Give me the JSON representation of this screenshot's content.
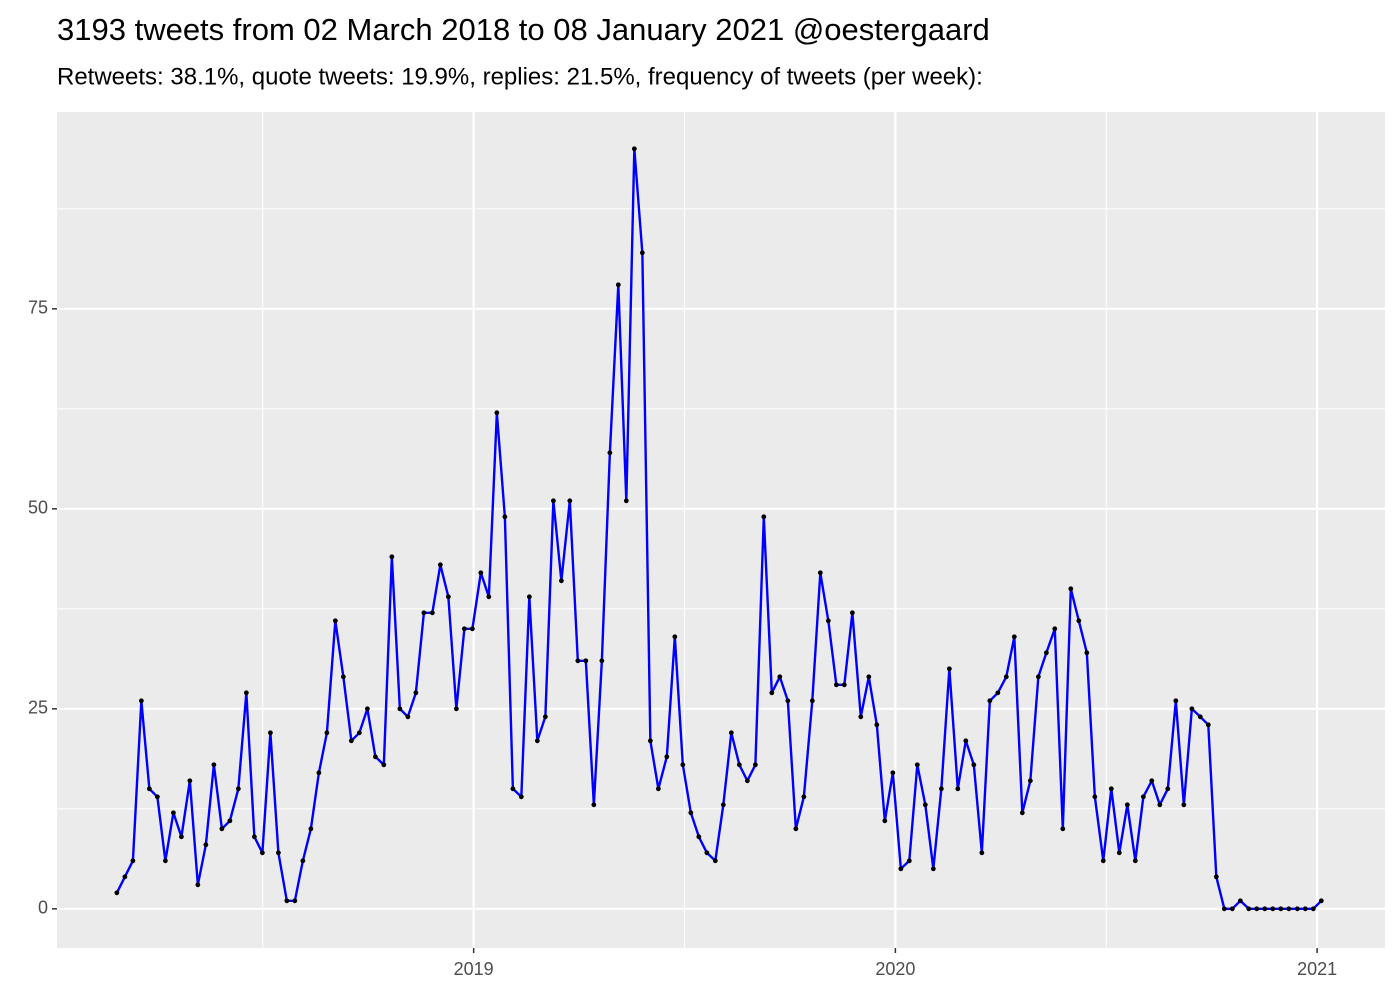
{
  "chart_data": {
    "type": "line",
    "title": "3193 tweets from 02 March 2018 to 08 January 2021 @oestergaard",
    "subtitle": "Retweets: 38.1%, quote tweets: 19.9%, replies: 21.5%, frequency of tweets (per week):",
    "x": [
      2018.154,
      2018.173,
      2018.192,
      2018.212,
      2018.231,
      2018.25,
      2018.269,
      2018.288,
      2018.307,
      2018.327,
      2018.346,
      2018.365,
      2018.384,
      2018.403,
      2018.422,
      2018.442,
      2018.461,
      2018.48,
      2018.499,
      2018.518,
      2018.537,
      2018.557,
      2018.576,
      2018.595,
      2018.614,
      2018.633,
      2018.652,
      2018.672,
      2018.691,
      2018.71,
      2018.729,
      2018.748,
      2018.767,
      2018.787,
      2018.806,
      2018.825,
      2018.844,
      2018.863,
      2018.882,
      2018.902,
      2018.921,
      2018.94,
      2018.959,
      2018.978,
      2018.997,
      2019.017,
      2019.036,
      2019.055,
      2019.074,
      2019.093,
      2019.113,
      2019.132,
      2019.151,
      2019.17,
      2019.189,
      2019.208,
      2019.228,
      2019.247,
      2019.266,
      2019.285,
      2019.304,
      2019.323,
      2019.343,
      2019.362,
      2019.381,
      2019.4,
      2019.419,
      2019.438,
      2019.458,
      2019.477,
      2019.496,
      2019.515,
      2019.534,
      2019.553,
      2019.573,
      2019.592,
      2019.611,
      2019.63,
      2019.649,
      2019.668,
      2019.688,
      2019.707,
      2019.726,
      2019.745,
      2019.764,
      2019.783,
      2019.803,
      2019.822,
      2019.841,
      2019.86,
      2019.879,
      2019.898,
      2019.918,
      2019.937,
      2019.956,
      2019.975,
      2019.994,
      2020.013,
      2020.033,
      2020.052,
      2020.071,
      2020.09,
      2020.109,
      2020.128,
      2020.148,
      2020.167,
      2020.186,
      2020.205,
      2020.224,
      2020.243,
      2020.263,
      2020.282,
      2020.301,
      2020.32,
      2020.339,
      2020.358,
      2020.378,
      2020.397,
      2020.416,
      2020.435,
      2020.454,
      2020.473,
      2020.493,
      2020.512,
      2020.531,
      2020.55,
      2020.569,
      2020.588,
      2020.608,
      2020.627,
      2020.646,
      2020.665,
      2020.684,
      2020.703,
      2020.723,
      2020.742,
      2020.761,
      2020.78,
      2020.799,
      2020.818,
      2020.838,
      2020.857,
      2020.876,
      2020.895,
      2020.914,
      2020.933,
      2020.953,
      2020.972,
      2020.991,
      2021.01
    ],
    "values": [
      2,
      4,
      6,
      26,
      15,
      14,
      6,
      12,
      9,
      16,
      3,
      8,
      18,
      10,
      11,
      15,
      27,
      9,
      7,
      22,
      7,
      1,
      1,
      6,
      10,
      17,
      22,
      36,
      29,
      21,
      22,
      25,
      19,
      18,
      44,
      25,
      24,
      27,
      37,
      37,
      43,
      39,
      25,
      35,
      35,
      42,
      39,
      62,
      49,
      15,
      14,
      39,
      21,
      24,
      51,
      41,
      51,
      31,
      31,
      13,
      31,
      57,
      78,
      51,
      95,
      82,
      21,
      15,
      19,
      34,
      18,
      12,
      9,
      7,
      6,
      13,
      22,
      18,
      16,
      18,
      49,
      27,
      29,
      26,
      10,
      14,
      26,
      42,
      36,
      28,
      28,
      37,
      24,
      29,
      23,
      11,
      17,
      5,
      6,
      18,
      13,
      5,
      15,
      30,
      15,
      21,
      18,
      7,
      26,
      27,
      29,
      34,
      12,
      16,
      29,
      32,
      35,
      10,
      40,
      36,
      32,
      14,
      6,
      15,
      7,
      13,
      6,
      14,
      16,
      13,
      15,
      26,
      13,
      25,
      24,
      23,
      4,
      0,
      0,
      1,
      0,
      0,
      0,
      0,
      0,
      0,
      0,
      0,
      0,
      1
    ],
    "color": "#0000ff",
    "point_color": "#000000",
    "xlim": [
      2018.012,
      2021.161
    ],
    "xticks": [
      2019,
      2020,
      2021
    ],
    "x_minor_ticks": [
      2018.5,
      2019.5,
      2020.5
    ],
    "ylim": [
      -4.9,
      99.6
    ],
    "yticks": [
      0,
      25,
      50,
      75
    ],
    "y_minor_ticks": [
      12.5,
      37.5,
      62.5,
      87.5
    ],
    "grid": true
  }
}
